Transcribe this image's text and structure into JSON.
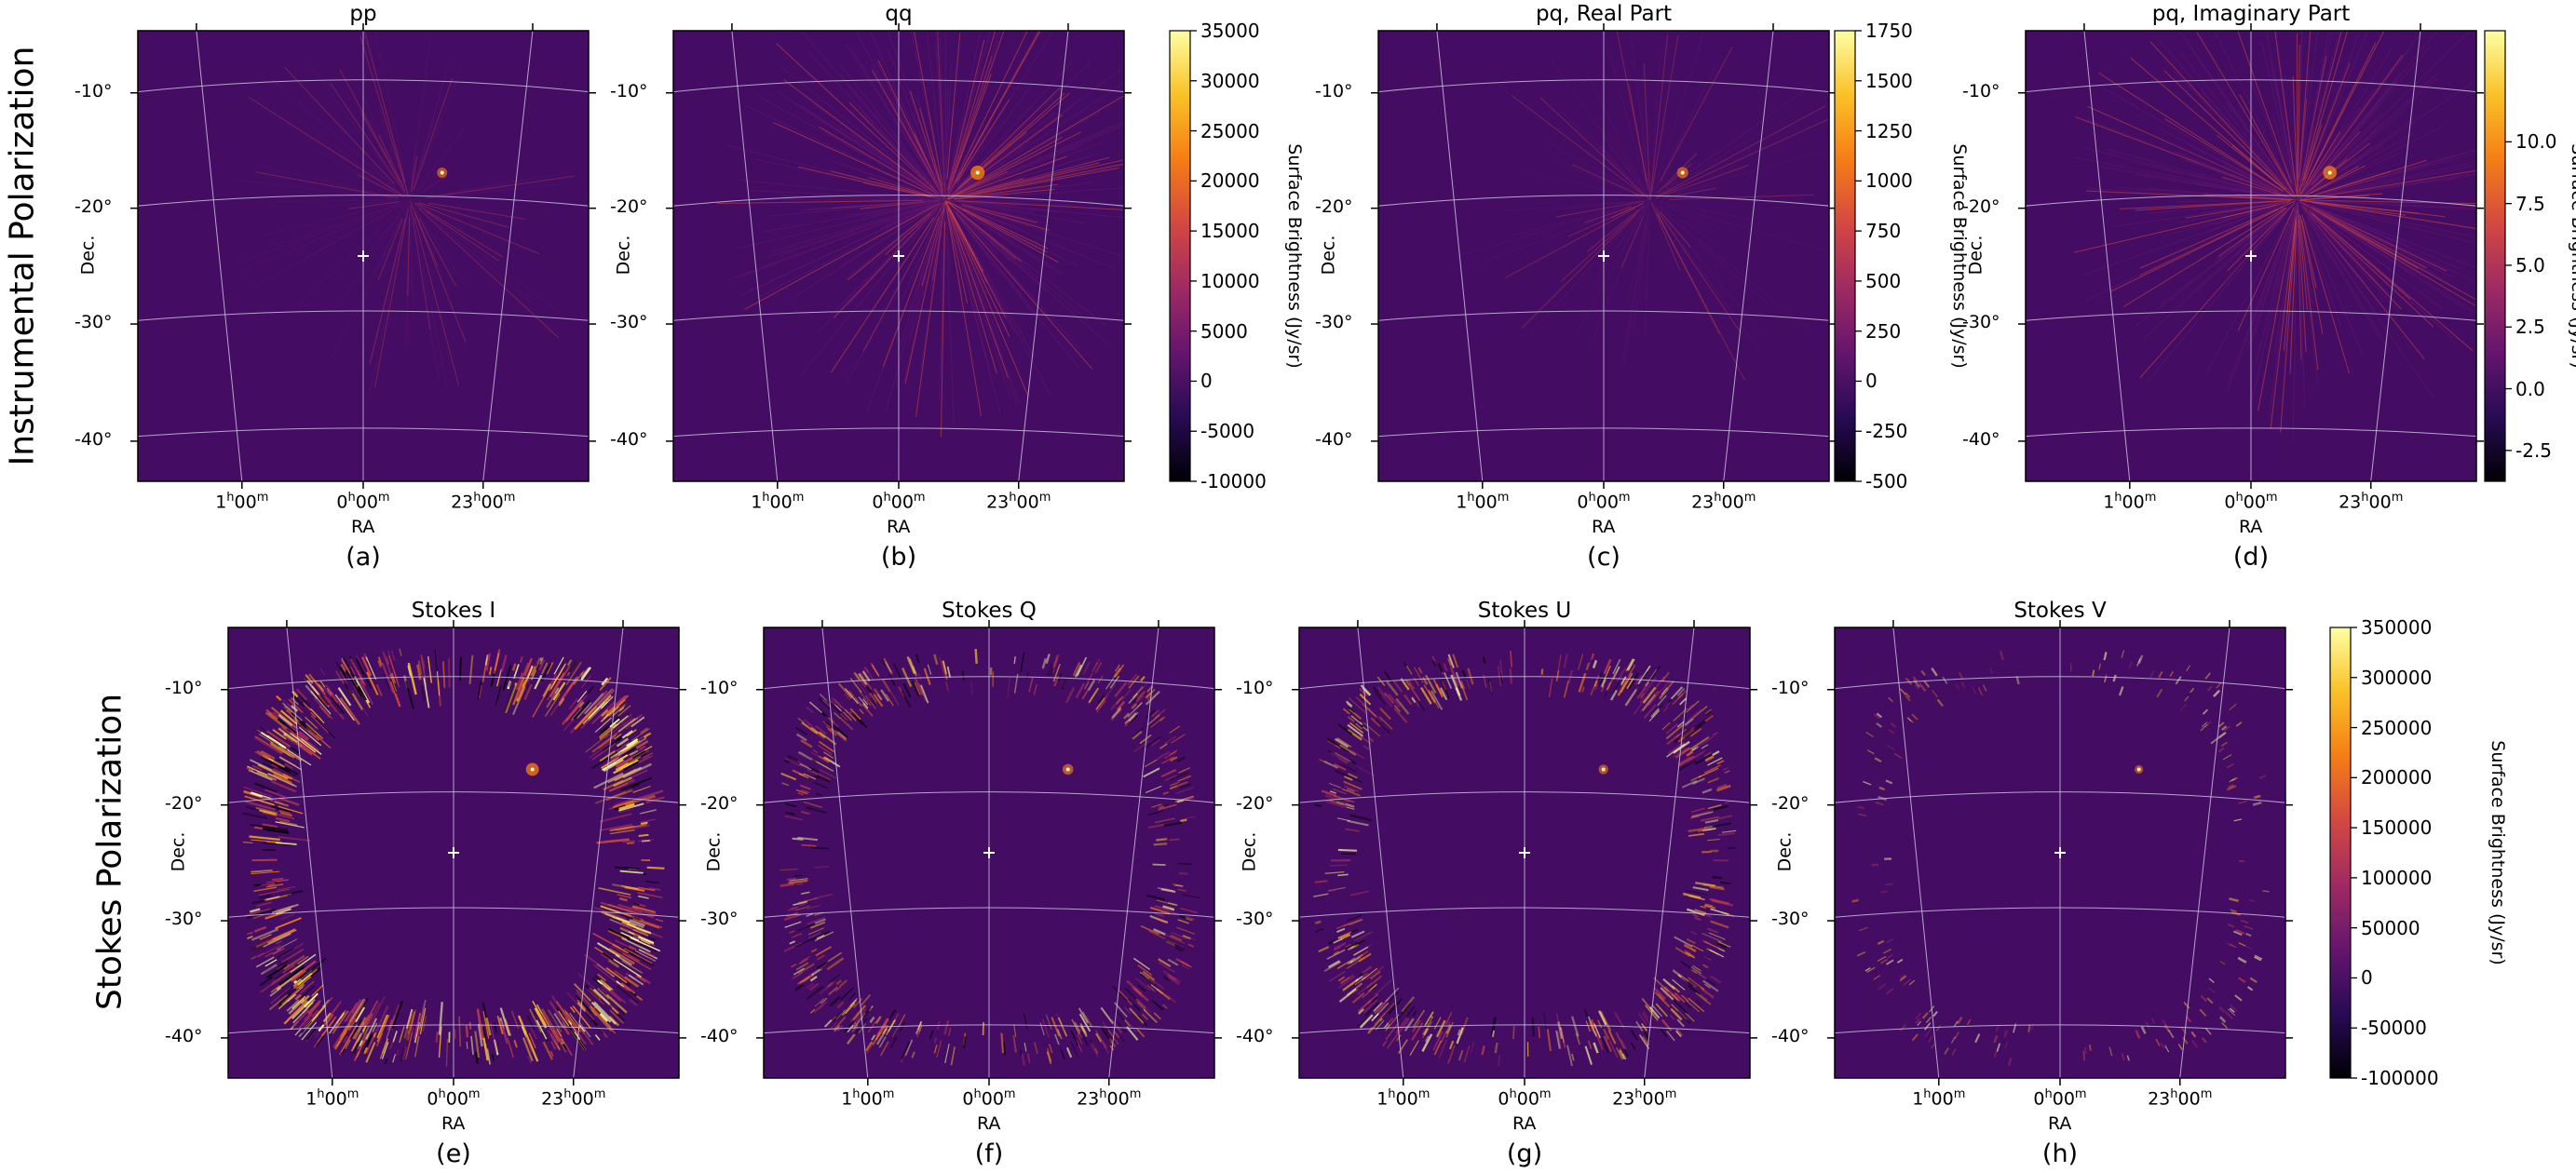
{
  "row_labels": [
    "Instrumental Polarization",
    "Stokes Polarization"
  ],
  "colors": {
    "background": "#440d63",
    "grid": "#c9c0dd",
    "marker": "#ffffff",
    "colormap": [
      "#000004",
      "#280b54",
      "#65156e",
      "#9f2a63",
      "#d44842",
      "#f57d15",
      "#fac127",
      "#fcffa4"
    ]
  },
  "axis_common": {
    "xlabel": "RA",
    "ylabel": "Dec.",
    "dec_ticks": [
      "-10°",
      "-20°",
      "-30°",
      "-40°"
    ],
    "ra_ticks": [
      {
        "h": "1",
        "m": "00"
      },
      {
        "h": "0",
        "m": "00"
      },
      {
        "h": "23",
        "m": "00"
      }
    ],
    "h_sup": "h",
    "m_sup": "m"
  },
  "panels": [
    {
      "title": "pp",
      "caption": "(a)",
      "pattern": "dim",
      "source_intensity": 0.25
    },
    {
      "title": "qq",
      "caption": "(b)",
      "pattern": "center",
      "source_intensity": 0.6
    },
    {
      "title": "pq, Real Part",
      "caption": "(c)",
      "pattern": "dim",
      "source_intensity": 0.35
    },
    {
      "title": "pq, Imaginary Part",
      "caption": "(d)",
      "pattern": "center",
      "source_intensity": 0.55
    },
    {
      "title": "Stokes I",
      "caption": "(e)",
      "pattern": "ring",
      "ring_strength": 1.0,
      "source_intensity": 0.5
    },
    {
      "title": "Stokes Q",
      "caption": "(f)",
      "pattern": "ring",
      "ring_strength": 0.55,
      "source_intensity": 0.3
    },
    {
      "title": "Stokes U",
      "caption": "(g)",
      "pattern": "ring",
      "ring_strength": 0.6,
      "source_intensity": 0.2
    },
    {
      "title": "Stokes V",
      "caption": "(h)",
      "pattern": "ring",
      "ring_strength": 0.15,
      "source_intensity": 0.1
    }
  ],
  "colorbars": [
    {
      "label": "Surface Brightness (Jy/sr)",
      "min": -10000,
      "max": 35000,
      "ticks": [
        "35000",
        "30000",
        "25000",
        "20000",
        "15000",
        "10000",
        "5000",
        "0",
        "-5000",
        "-10000"
      ]
    },
    {
      "label": "Surface Brightness (Jy/sr)",
      "min": -500,
      "max": 1750,
      "ticks": [
        "1750",
        "1500",
        "1250",
        "1000",
        "750",
        "500",
        "250",
        "0",
        "-250",
        "-500"
      ]
    },
    {
      "label": "Surface Brightness (Jy/sr)",
      "min": -3.75,
      "max": 14.5,
      "ticks": [
        "10.0",
        "7.5",
        "5.0",
        "2.5",
        "0.0",
        "-2.5"
      ],
      "tick_values": [
        10.0,
        7.5,
        5.0,
        2.5,
        0.0,
        -2.5
      ]
    },
    {
      "label": "Surface Brightness (Jy/sr)",
      "min": -100000,
      "max": 350000,
      "ticks": [
        "350000",
        "300000",
        "250000",
        "200000",
        "150000",
        "100000",
        "50000",
        "0",
        "-50000",
        "-100000"
      ]
    }
  ]
}
